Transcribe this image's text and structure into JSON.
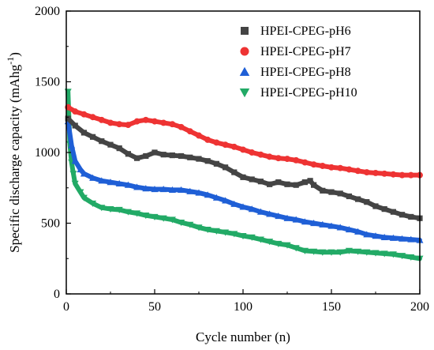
{
  "chart_data": {
    "type": "scatter",
    "xlabel": "Cycle number (n)",
    "ylabel": "Specific discharge capacity (mAhg",
    "ylabel_superscript": "-1",
    "ylabel_suffix": ")",
    "xlim": [
      0,
      200
    ],
    "ylim": [
      0,
      2000
    ],
    "x_ticks": [
      0,
      50,
      100,
      150,
      200
    ],
    "y_ticks": [
      0,
      500,
      1000,
      1500,
      2000
    ],
    "x_tick_labels": [
      "0",
      "50",
      "100",
      "150",
      "200"
    ],
    "y_tick_labels": [
      "0",
      "500",
      "1000",
      "1500",
      "2000"
    ],
    "grid": false,
    "legend_position": "top-right",
    "series": [
      {
        "name": "HPEI-CPEG-pH6",
        "color": "#444444",
        "marker": "square",
        "points": [
          [
            1,
            1240
          ],
          [
            5,
            1190
          ],
          [
            10,
            1140
          ],
          [
            15,
            1110
          ],
          [
            20,
            1080
          ],
          [
            25,
            1055
          ],
          [
            30,
            1030
          ],
          [
            35,
            990
          ],
          [
            40,
            960
          ],
          [
            45,
            975
          ],
          [
            50,
            1000
          ],
          [
            55,
            985
          ],
          [
            60,
            980
          ],
          [
            65,
            975
          ],
          [
            70,
            965
          ],
          [
            75,
            955
          ],
          [
            80,
            940
          ],
          [
            85,
            920
          ],
          [
            90,
            895
          ],
          [
            95,
            860
          ],
          [
            100,
            825
          ],
          [
            105,
            810
          ],
          [
            110,
            795
          ],
          [
            115,
            775
          ],
          [
            120,
            790
          ],
          [
            125,
            775
          ],
          [
            130,
            770
          ],
          [
            135,
            790
          ],
          [
            138,
            800
          ],
          [
            140,
            770
          ],
          [
            145,
            730
          ],
          [
            150,
            720
          ],
          [
            155,
            710
          ],
          [
            160,
            690
          ],
          [
            165,
            670
          ],
          [
            170,
            650
          ],
          [
            175,
            620
          ],
          [
            180,
            600
          ],
          [
            185,
            580
          ],
          [
            190,
            560
          ],
          [
            195,
            545
          ],
          [
            200,
            535
          ]
        ]
      },
      {
        "name": "HPEI-CPEG-pH7",
        "color": "#ee3333",
        "marker": "circle",
        "points": [
          [
            1,
            1320
          ],
          [
            5,
            1290
          ],
          [
            10,
            1270
          ],
          [
            15,
            1250
          ],
          [
            20,
            1230
          ],
          [
            25,
            1210
          ],
          [
            30,
            1200
          ],
          [
            35,
            1195
          ],
          [
            40,
            1220
          ],
          [
            45,
            1230
          ],
          [
            50,
            1220
          ],
          [
            55,
            1210
          ],
          [
            60,
            1200
          ],
          [
            65,
            1180
          ],
          [
            70,
            1150
          ],
          [
            75,
            1120
          ],
          [
            80,
            1090
          ],
          [
            85,
            1070
          ],
          [
            90,
            1055
          ],
          [
            95,
            1040
          ],
          [
            100,
            1020
          ],
          [
            105,
            1000
          ],
          [
            110,
            985
          ],
          [
            115,
            970
          ],
          [
            120,
            960
          ],
          [
            125,
            955
          ],
          [
            130,
            945
          ],
          [
            135,
            930
          ],
          [
            140,
            915
          ],
          [
            145,
            905
          ],
          [
            150,
            895
          ],
          [
            155,
            890
          ],
          [
            160,
            880
          ],
          [
            165,
            870
          ],
          [
            170,
            860
          ],
          [
            175,
            855
          ],
          [
            180,
            850
          ],
          [
            185,
            845
          ],
          [
            190,
            840
          ],
          [
            195,
            840
          ],
          [
            200,
            840
          ]
        ]
      },
      {
        "name": "HPEI-CPEG-pH8",
        "color": "#1f5fd6",
        "marker": "triangle-up",
        "points": [
          [
            1,
            1220
          ],
          [
            3,
            1050
          ],
          [
            5,
            940
          ],
          [
            8,
            880
          ],
          [
            10,
            850
          ],
          [
            15,
            820
          ],
          [
            20,
            800
          ],
          [
            25,
            790
          ],
          [
            30,
            780
          ],
          [
            35,
            770
          ],
          [
            40,
            755
          ],
          [
            45,
            745
          ],
          [
            50,
            740
          ],
          [
            55,
            740
          ],
          [
            60,
            735
          ],
          [
            65,
            735
          ],
          [
            70,
            725
          ],
          [
            75,
            715
          ],
          [
            80,
            700
          ],
          [
            85,
            680
          ],
          [
            90,
            660
          ],
          [
            95,
            635
          ],
          [
            100,
            615
          ],
          [
            105,
            600
          ],
          [
            110,
            580
          ],
          [
            115,
            565
          ],
          [
            120,
            550
          ],
          [
            125,
            535
          ],
          [
            130,
            525
          ],
          [
            135,
            510
          ],
          [
            140,
            500
          ],
          [
            145,
            490
          ],
          [
            150,
            480
          ],
          [
            155,
            470
          ],
          [
            160,
            455
          ],
          [
            165,
            440
          ],
          [
            170,
            420
          ],
          [
            175,
            410
          ],
          [
            180,
            400
          ],
          [
            185,
            395
          ],
          [
            190,
            390
          ],
          [
            195,
            385
          ],
          [
            200,
            380
          ]
        ]
      },
      {
        "name": "HPEI-CPEG-pH10",
        "color": "#22aa66",
        "marker": "triangle-down",
        "points": [
          [
            1,
            1430
          ],
          [
            2,
            1060
          ],
          [
            3,
            930
          ],
          [
            4,
            850
          ],
          [
            5,
            780
          ],
          [
            8,
            720
          ],
          [
            10,
            680
          ],
          [
            15,
            640
          ],
          [
            20,
            610
          ],
          [
            25,
            600
          ],
          [
            30,
            595
          ],
          [
            35,
            580
          ],
          [
            40,
            570
          ],
          [
            45,
            555
          ],
          [
            50,
            545
          ],
          [
            55,
            535
          ],
          [
            60,
            525
          ],
          [
            65,
            505
          ],
          [
            70,
            490
          ],
          [
            75,
            470
          ],
          [
            80,
            455
          ],
          [
            85,
            445
          ],
          [
            90,
            435
          ],
          [
            95,
            425
          ],
          [
            100,
            410
          ],
          [
            105,
            400
          ],
          [
            110,
            385
          ],
          [
            115,
            370
          ],
          [
            120,
            355
          ],
          [
            125,
            345
          ],
          [
            130,
            325
          ],
          [
            135,
            305
          ],
          [
            140,
            300
          ],
          [
            145,
            295
          ],
          [
            150,
            295
          ],
          [
            155,
            295
          ],
          [
            160,
            305
          ],
          [
            165,
            300
          ],
          [
            170,
            295
          ],
          [
            175,
            290
          ],
          [
            180,
            285
          ],
          [
            185,
            280
          ],
          [
            190,
            270
          ],
          [
            195,
            260
          ],
          [
            200,
            250
          ]
        ]
      }
    ]
  }
}
